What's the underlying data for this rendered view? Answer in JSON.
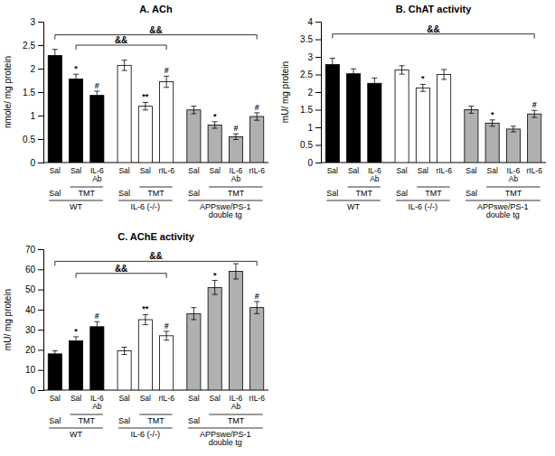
{
  "chart_data": [
    {
      "type": "bar",
      "title": "A. ACh",
      "y_label": "nmole/ mg protein",
      "categories": [
        "Sal",
        "Sal",
        "IL-6\nAb",
        "Sal",
        "Sal",
        "rIL-6",
        "Sal",
        "Sal",
        "IL-6\nAb",
        "rIL-6"
      ],
      "values": [
        2.28,
        1.78,
        1.43,
        2.07,
        1.2,
        1.72,
        1.12,
        0.8,
        0.55,
        0.98
      ],
      "errors": [
        0.13,
        0.1,
        0.09,
        0.11,
        0.08,
        0.12,
        0.08,
        0.07,
        0.06,
        0.08
      ],
      "significance": [
        null,
        "*",
        "#",
        null,
        "**",
        "#",
        null,
        "*",
        "#",
        "#"
      ],
      "colors": [
        "black",
        "black",
        "black",
        "white",
        "white",
        "white",
        "#b0b0b0",
        "#b0b0b0",
        "#b0b0b0",
        "#b0b0b0"
      ],
      "ylim": [
        0,
        3.0
      ],
      "yticks": [
        0,
        0.5,
        1,
        1.5,
        2,
        2.5,
        3
      ],
      "brackets": [
        {
          "from": 0,
          "to": 9,
          "y": 2.72,
          "label": "&&"
        },
        {
          "from": 1,
          "to": 5,
          "y": 2.5,
          "label": "&&"
        }
      ],
      "x_groups": [
        [
          {
            "label": "Sal",
            "from": 0,
            "to": 0
          },
          {
            "label": "TMT",
            "from": 1,
            "to": 2
          },
          {
            "label": "Sal",
            "from": 3,
            "to": 3
          },
          {
            "label": "TMT",
            "from": 4,
            "to": 5
          },
          {
            "label": "Sal",
            "from": 6,
            "to": 6
          },
          {
            "label": "TMT",
            "from": 7,
            "to": 9
          }
        ],
        [
          {
            "label": "WT",
            "from": 0,
            "to": 2
          },
          {
            "label": "IL-6 (-/-)",
            "from": 3,
            "to": 5
          },
          {
            "label": "APPswe/PS-1\ndouble tg",
            "from": 6,
            "to": 9
          }
        ]
      ],
      "grid": false
    },
    {
      "type": "bar",
      "title": "B. ChAT activity",
      "y_label": "mU/ mg protein",
      "categories": [
        "Sal",
        "Sal",
        "IL-6\nAb",
        "Sal",
        "Sal",
        "rIL-6",
        "Sal",
        "Sal",
        "IL-6\nAb",
        "rIL-6"
      ],
      "values": [
        2.78,
        2.52,
        2.25,
        2.63,
        2.12,
        2.5,
        1.5,
        1.12,
        0.95,
        1.38
      ],
      "errors": [
        0.18,
        0.14,
        0.15,
        0.12,
        0.1,
        0.14,
        0.1,
        0.09,
        0.08,
        0.1
      ],
      "significance": [
        null,
        null,
        null,
        null,
        "*",
        null,
        null,
        "*",
        null,
        "#"
      ],
      "colors": [
        "black",
        "black",
        "black",
        "white",
        "white",
        "white",
        "#b0b0b0",
        "#b0b0b0",
        "#b0b0b0",
        "#b0b0b0"
      ],
      "ylim": [
        0,
        4.0
      ],
      "yticks": [
        0,
        0.5,
        1,
        1.5,
        2,
        2.5,
        3,
        3.5,
        4
      ],
      "brackets": [
        {
          "from": 0,
          "to": 9,
          "y": 3.65,
          "label": "&&"
        }
      ],
      "x_groups": [
        [
          {
            "label": "Sal",
            "from": 0,
            "to": 0
          },
          {
            "label": "TMT",
            "from": 1,
            "to": 2
          },
          {
            "label": "Sal",
            "from": 3,
            "to": 3
          },
          {
            "label": "TMT",
            "from": 4,
            "to": 5
          },
          {
            "label": "Sal",
            "from": 6,
            "to": 6
          },
          {
            "label": "TMT",
            "from": 7,
            "to": 9
          }
        ],
        [
          {
            "label": "WT",
            "from": 0,
            "to": 2
          },
          {
            "label": "IL-6 (-/-)",
            "from": 3,
            "to": 5
          },
          {
            "label": "APPswe/PS-1\ndouble tg",
            "from": 6,
            "to": 9
          }
        ]
      ],
      "grid": false
    },
    {
      "type": "bar",
      "title": "C. AChE activity",
      "y_label": "mU/ mg protein",
      "categories": [
        "Sal",
        "Sal",
        "IL-6\nAb",
        "Sal",
        "Sal",
        "rIL-6",
        "Sal",
        "Sal",
        "IL-6\nAb",
        "rIL-6"
      ],
      "values": [
        18.0,
        24.5,
        31.5,
        19.5,
        35.0,
        27.0,
        38.0,
        51.0,
        59.0,
        41.0
      ],
      "errors": [
        1.5,
        2.0,
        2.5,
        1.8,
        2.5,
        2.2,
        3.0,
        3.5,
        3.8,
        3.0
      ],
      "significance": [
        null,
        "*",
        "#",
        null,
        "**",
        "#",
        null,
        "*",
        null,
        "#"
      ],
      "colors": [
        "black",
        "black",
        "black",
        "white",
        "white",
        "white",
        "#b0b0b0",
        "#b0b0b0",
        "#b0b0b0",
        "#b0b0b0"
      ],
      "ylim": [
        0,
        70
      ],
      "yticks": [
        0,
        10,
        20,
        30,
        40,
        50,
        60,
        70
      ],
      "brackets": [
        {
          "from": 0,
          "to": 9,
          "y": 64.0,
          "label": "&&"
        },
        {
          "from": 1,
          "to": 5,
          "y": 58.0,
          "label": "&&"
        }
      ],
      "x_groups": [
        [
          {
            "label": "Sal",
            "from": 0,
            "to": 0
          },
          {
            "label": "TMT",
            "from": 1,
            "to": 2
          },
          {
            "label": "Sal",
            "from": 3,
            "to": 3
          },
          {
            "label": "TMT",
            "from": 4,
            "to": 5
          },
          {
            "label": "Sal",
            "from": 6,
            "to": 6
          },
          {
            "label": "TMT",
            "from": 7,
            "to": 9
          }
        ],
        [
          {
            "label": "WT",
            "from": 0,
            "to": 2
          },
          {
            "label": "IL-6 (-/-)",
            "from": 3,
            "to": 5
          },
          {
            "label": "APPswe/PS-1\ndouble tg",
            "from": 6,
            "to": 9
          }
        ]
      ],
      "grid": false
    }
  ]
}
